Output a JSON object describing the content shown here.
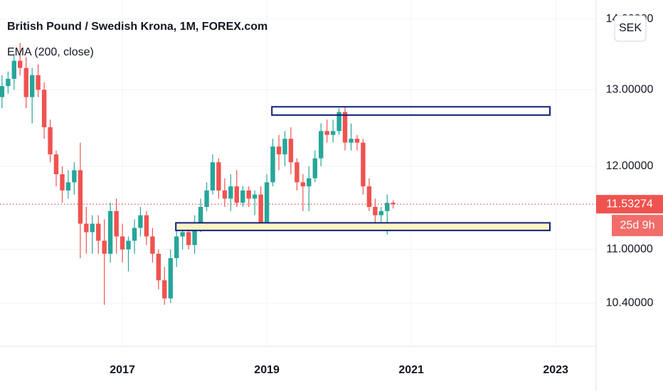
{
  "chart_data": {
    "type": "candlestick",
    "title": "British Pound / Swedish Krona, 1M, FOREX.com",
    "subtitle": "EMA (200, close)",
    "currency": "SEK",
    "countdown": "25d 9h",
    "up_color": "#26a69a",
    "down_color": "#ef5350",
    "log_scale": true,
    "grid": true,
    "x": [
      2015.333,
      2015.417,
      2015.5,
      2015.583,
      2015.667,
      2015.75,
      2015.833,
      2015.917,
      2016,
      2016.083,
      2016.167,
      2016.25,
      2016.333,
      2016.417,
      2016.5,
      2016.583,
      2016.667,
      2016.75,
      2016.833,
      2016.917,
      2017,
      2017.083,
      2017.167,
      2017.25,
      2017.333,
      2017.417,
      2017.5,
      2017.583,
      2017.667,
      2017.75,
      2017.833,
      2017.917,
      2018,
      2018.083,
      2018.167,
      2018.25,
      2018.333,
      2018.417,
      2018.5,
      2018.583,
      2018.667,
      2018.75,
      2018.833,
      2018.917,
      2019,
      2019.083,
      2019.167,
      2019.25,
      2019.333,
      2019.417,
      2019.5,
      2019.583,
      2019.667,
      2019.75,
      2019.833,
      2019.917,
      2020,
      2020.083,
      2020.167,
      2020.25,
      2020.333,
      2020.417,
      2020.5,
      2020.583,
      2020.667,
      2020.75
    ],
    "open": [
      12.9,
      13.05,
      13.15,
      13.4,
      13.3,
      12.9,
      13.2,
      13.0,
      12.5,
      12.15,
      11.9,
      11.7,
      11.8,
      11.95,
      11.3,
      11.2,
      11.3,
      11.1,
      10.95,
      11.45,
      11.15,
      11.0,
      11.1,
      11.25,
      11.4,
      11.15,
      10.95,
      10.65,
      10.45,
      10.9,
      11.15,
      11.2,
      11.05,
      11.3,
      11.5,
      11.7,
      12.05,
      11.7,
      11.6,
      11.75,
      11.55,
      11.7,
      11.6,
      11.65,
      11.3,
      11.8,
      12.25,
      12.15,
      12.35,
      12.05,
      11.8,
      11.75,
      11.85,
      12.1,
      12.45,
      12.4,
      12.45,
      12.7,
      12.3,
      12.35,
      12.3,
      11.75,
      11.5,
      11.4,
      11.45,
      11.55
    ],
    "high": [
      13.2,
      13.25,
      13.5,
      13.65,
      13.45,
      13.3,
      13.35,
      13.1,
      12.6,
      12.2,
      12.0,
      11.95,
      12.05,
      12.3,
      11.5,
      11.4,
      11.4,
      11.35,
      11.55,
      11.6,
      11.3,
      11.15,
      11.35,
      11.5,
      11.45,
      11.25,
      11.0,
      10.8,
      11.0,
      11.3,
      11.3,
      11.3,
      11.4,
      11.6,
      11.8,
      12.15,
      12.1,
      11.85,
      11.9,
      11.95,
      11.75,
      11.75,
      11.7,
      11.75,
      11.9,
      12.35,
      12.4,
      12.45,
      12.5,
      12.1,
      11.9,
      12.0,
      12.2,
      12.55,
      12.6,
      12.6,
      12.75,
      12.78,
      12.55,
      12.4,
      12.35,
      11.85,
      11.6,
      11.5,
      11.65,
      11.58
    ],
    "low": [
      12.75,
      12.95,
      13.0,
      13.2,
      12.75,
      12.55,
      12.9,
      12.35,
      12.05,
      11.75,
      11.55,
      11.6,
      11.65,
      10.9,
      10.95,
      10.95,
      10.95,
      10.38,
      10.85,
      10.95,
      10.85,
      10.75,
      10.95,
      11.15,
      11.05,
      10.85,
      10.55,
      10.38,
      10.4,
      10.8,
      11.0,
      11.0,
      10.95,
      11.2,
      11.45,
      11.65,
      11.6,
      11.5,
      11.45,
      11.5,
      11.5,
      11.5,
      11.4,
      11.25,
      11.25,
      11.75,
      11.95,
      12.0,
      11.9,
      11.7,
      11.45,
      11.45,
      11.8,
      12.0,
      12.3,
      12.3,
      12.4,
      12.2,
      12.2,
      12.2,
      11.65,
      11.45,
      11.25,
      11.25,
      11.17,
      11.48
    ],
    "close": [
      13.05,
      13.15,
      13.4,
      13.3,
      12.9,
      13.2,
      13.0,
      12.5,
      12.15,
      11.9,
      11.7,
      11.8,
      11.95,
      11.3,
      11.2,
      11.3,
      11.1,
      10.95,
      11.45,
      11.15,
      11.0,
      11.1,
      11.25,
      11.4,
      11.15,
      10.95,
      10.65,
      10.45,
      10.9,
      11.15,
      11.2,
      11.05,
      11.3,
      11.5,
      11.7,
      12.05,
      11.7,
      11.6,
      11.75,
      11.55,
      11.7,
      11.6,
      11.65,
      11.3,
      11.8,
      12.25,
      12.15,
      12.35,
      12.05,
      11.8,
      11.75,
      11.85,
      12.1,
      12.45,
      12.4,
      12.45,
      12.7,
      12.3,
      12.35,
      12.3,
      11.75,
      11.5,
      11.4,
      11.45,
      11.55,
      11.53274
    ],
    "zones": [
      {
        "x": [
          2019.07,
          2022.92
        ],
        "y": [
          12.66,
          12.77
        ],
        "color": "#0d1f7a",
        "fill": "none"
      },
      {
        "x": [
          2017.74,
          2022.92
        ],
        "y": [
          11.22,
          11.31
        ],
        "color": "#0d1f7a",
        "fill": "#fff3c4"
      }
    ],
    "xlim": [
      2015.305,
      2023.56
    ],
    "xticks": [
      2017,
      2019,
      2021,
      2023
    ],
    "ylim": [
      9.94,
      14.28
    ],
    "yticks": [
      {
        "value": 14,
        "label": "14.00000"
      },
      {
        "value": 13,
        "label": "13.00000"
      },
      {
        "value": 12,
        "label": "12.00000"
      },
      {
        "value": 11,
        "label": "11.00000"
      },
      {
        "value": 10.4,
        "label": "10.40000"
      }
    ]
  }
}
